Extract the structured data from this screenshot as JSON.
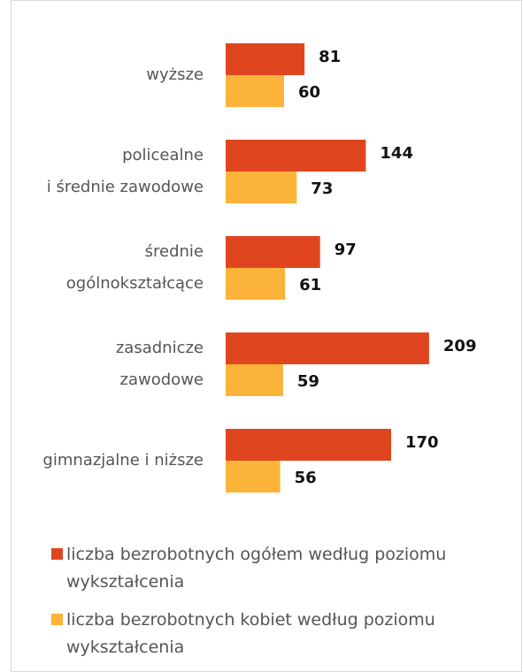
{
  "chart_data": {
    "type": "bar",
    "orientation": "horizontal",
    "categories": [
      [
        "wyższe"
      ],
      [
        "policealne",
        "i średnie zawodowe"
      ],
      [
        "średnie",
        "ogólnokształcące"
      ],
      [
        "zasadnicze",
        "zawodowe"
      ],
      [
        "gimnazjalne i niższe"
      ]
    ],
    "series": [
      {
        "name": "liczba bezrobotnych ogółem według poziomu wykształcenia",
        "color": "#df4620",
        "values": [
          81,
          144,
          97,
          209,
          170
        ]
      },
      {
        "name": "liczba bezrobotnych kobiet według poziomu wykształcenia",
        "color": "#fbb33a",
        "values": [
          60,
          73,
          61,
          59,
          56
        ]
      }
    ]
  }
}
